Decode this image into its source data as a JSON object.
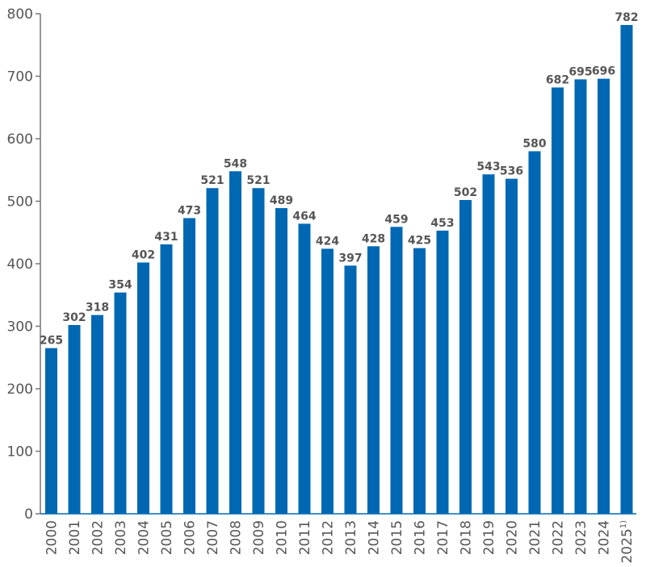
{
  "chart_data": {
    "type": "bar",
    "title": "",
    "xlabel": "",
    "ylabel": "",
    "ylim": [
      0,
      800
    ],
    "yticks": [
      0,
      100,
      200,
      300,
      400,
      500,
      600,
      700,
      800
    ],
    "grid": false,
    "categories": [
      "2000",
      "2001",
      "2002",
      "2003",
      "2004",
      "2005",
      "2006",
      "2007",
      "2008",
      "2009",
      "2010",
      "2011",
      "2012",
      "2013",
      "2014",
      "2015",
      "2016",
      "2017",
      "2018",
      "2019",
      "2020",
      "2021",
      "2022",
      "2023",
      "2024",
      "2025"
    ],
    "footnote_marks": {
      "2025": "1)"
    },
    "values": [
      265,
      302,
      318,
      354,
      402,
      431,
      473,
      521,
      548,
      521,
      489,
      464,
      424,
      397,
      428,
      459,
      425,
      453,
      502,
      543,
      536,
      580,
      682,
      695,
      696,
      782
    ],
    "bar_color": "#0068b3",
    "label_color": "#555555"
  }
}
